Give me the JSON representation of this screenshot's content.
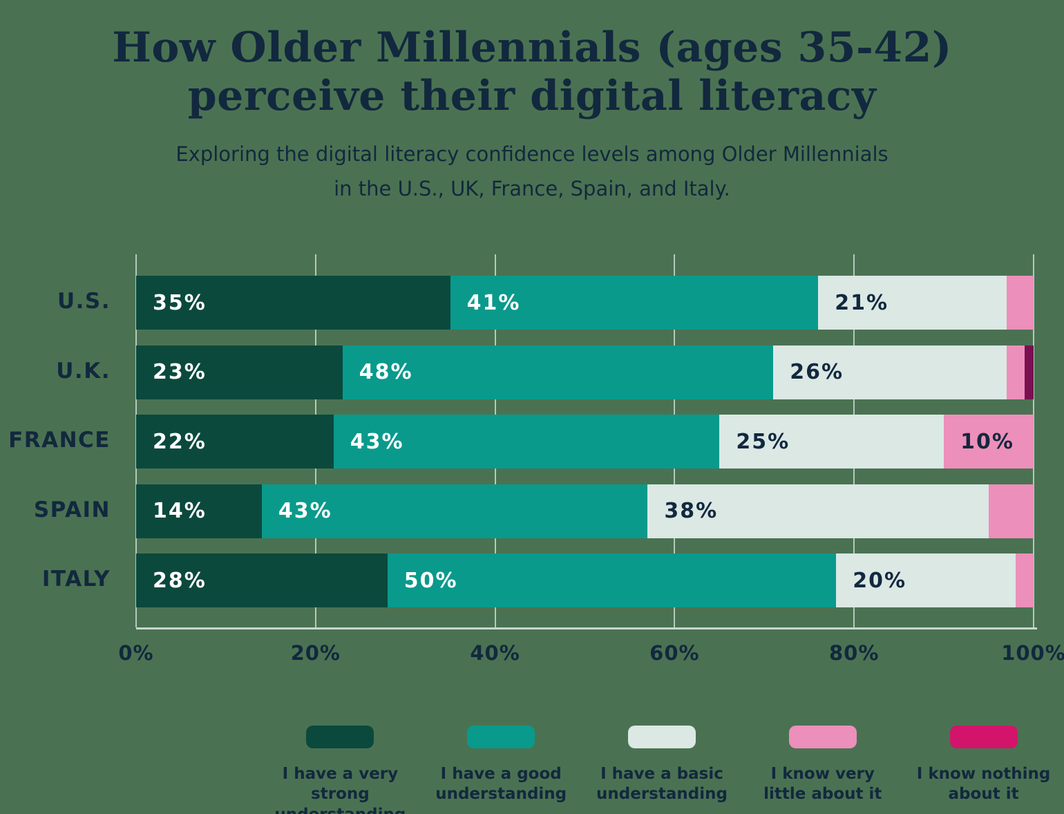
{
  "colors": {
    "background": "#4a7252",
    "text": "#12283e",
    "gridline": "#c9d8cf"
  },
  "header": {
    "title_line1": "How Older Millennials (ages 35-42)",
    "title_line2": "perceive their digital literacy",
    "subtitle_line1": "Exploring the digital literacy confidence levels among Older Millennials",
    "subtitle_line2": "in the U.S., UK, France, Spain, and Italy."
  },
  "chart_data": {
    "type": "bar",
    "orientation": "horizontal",
    "stacked": true,
    "title": "How Older Millennials (ages 35-42) perceive their digital literacy",
    "categories": [
      "U.S.",
      "U.K.",
      "FRANCE",
      "SPAIN",
      "ITALY"
    ],
    "series": [
      {
        "name": "I have a very strong understanding",
        "color": "#0b493d",
        "label_text_color": "#ffffff",
        "values": [
          35,
          23,
          22,
          14,
          28
        ]
      },
      {
        "name": "I have a good understanding",
        "color": "#099a8c",
        "label_text_color": "#ffffff",
        "values": [
          41,
          48,
          43,
          43,
          50
        ]
      },
      {
        "name": "I have a basic understanding",
        "color": "#dbe8e4",
        "label_text_color": "#12283e",
        "values": [
          21,
          26,
          25,
          38,
          20
        ]
      },
      {
        "name": "I know very little about it",
        "color": "#ed8fbb",
        "label_text_color": "#12283e",
        "values": [
          3,
          2,
          10,
          5,
          2
        ]
      },
      {
        "name": "I know nothing about it",
        "color": "#7a1052",
        "legend_color": "#d2156b",
        "label_text_color": "#ffffff",
        "values": [
          0,
          1,
          0,
          0,
          0
        ]
      }
    ],
    "value_suffix": "%",
    "label_min_value": 10,
    "x_ticks": [
      "0%",
      "20%",
      "40%",
      "60%",
      "80%",
      "100%"
    ],
    "xlim": [
      0,
      100
    ],
    "grid": true,
    "legend_position": "bottom"
  }
}
